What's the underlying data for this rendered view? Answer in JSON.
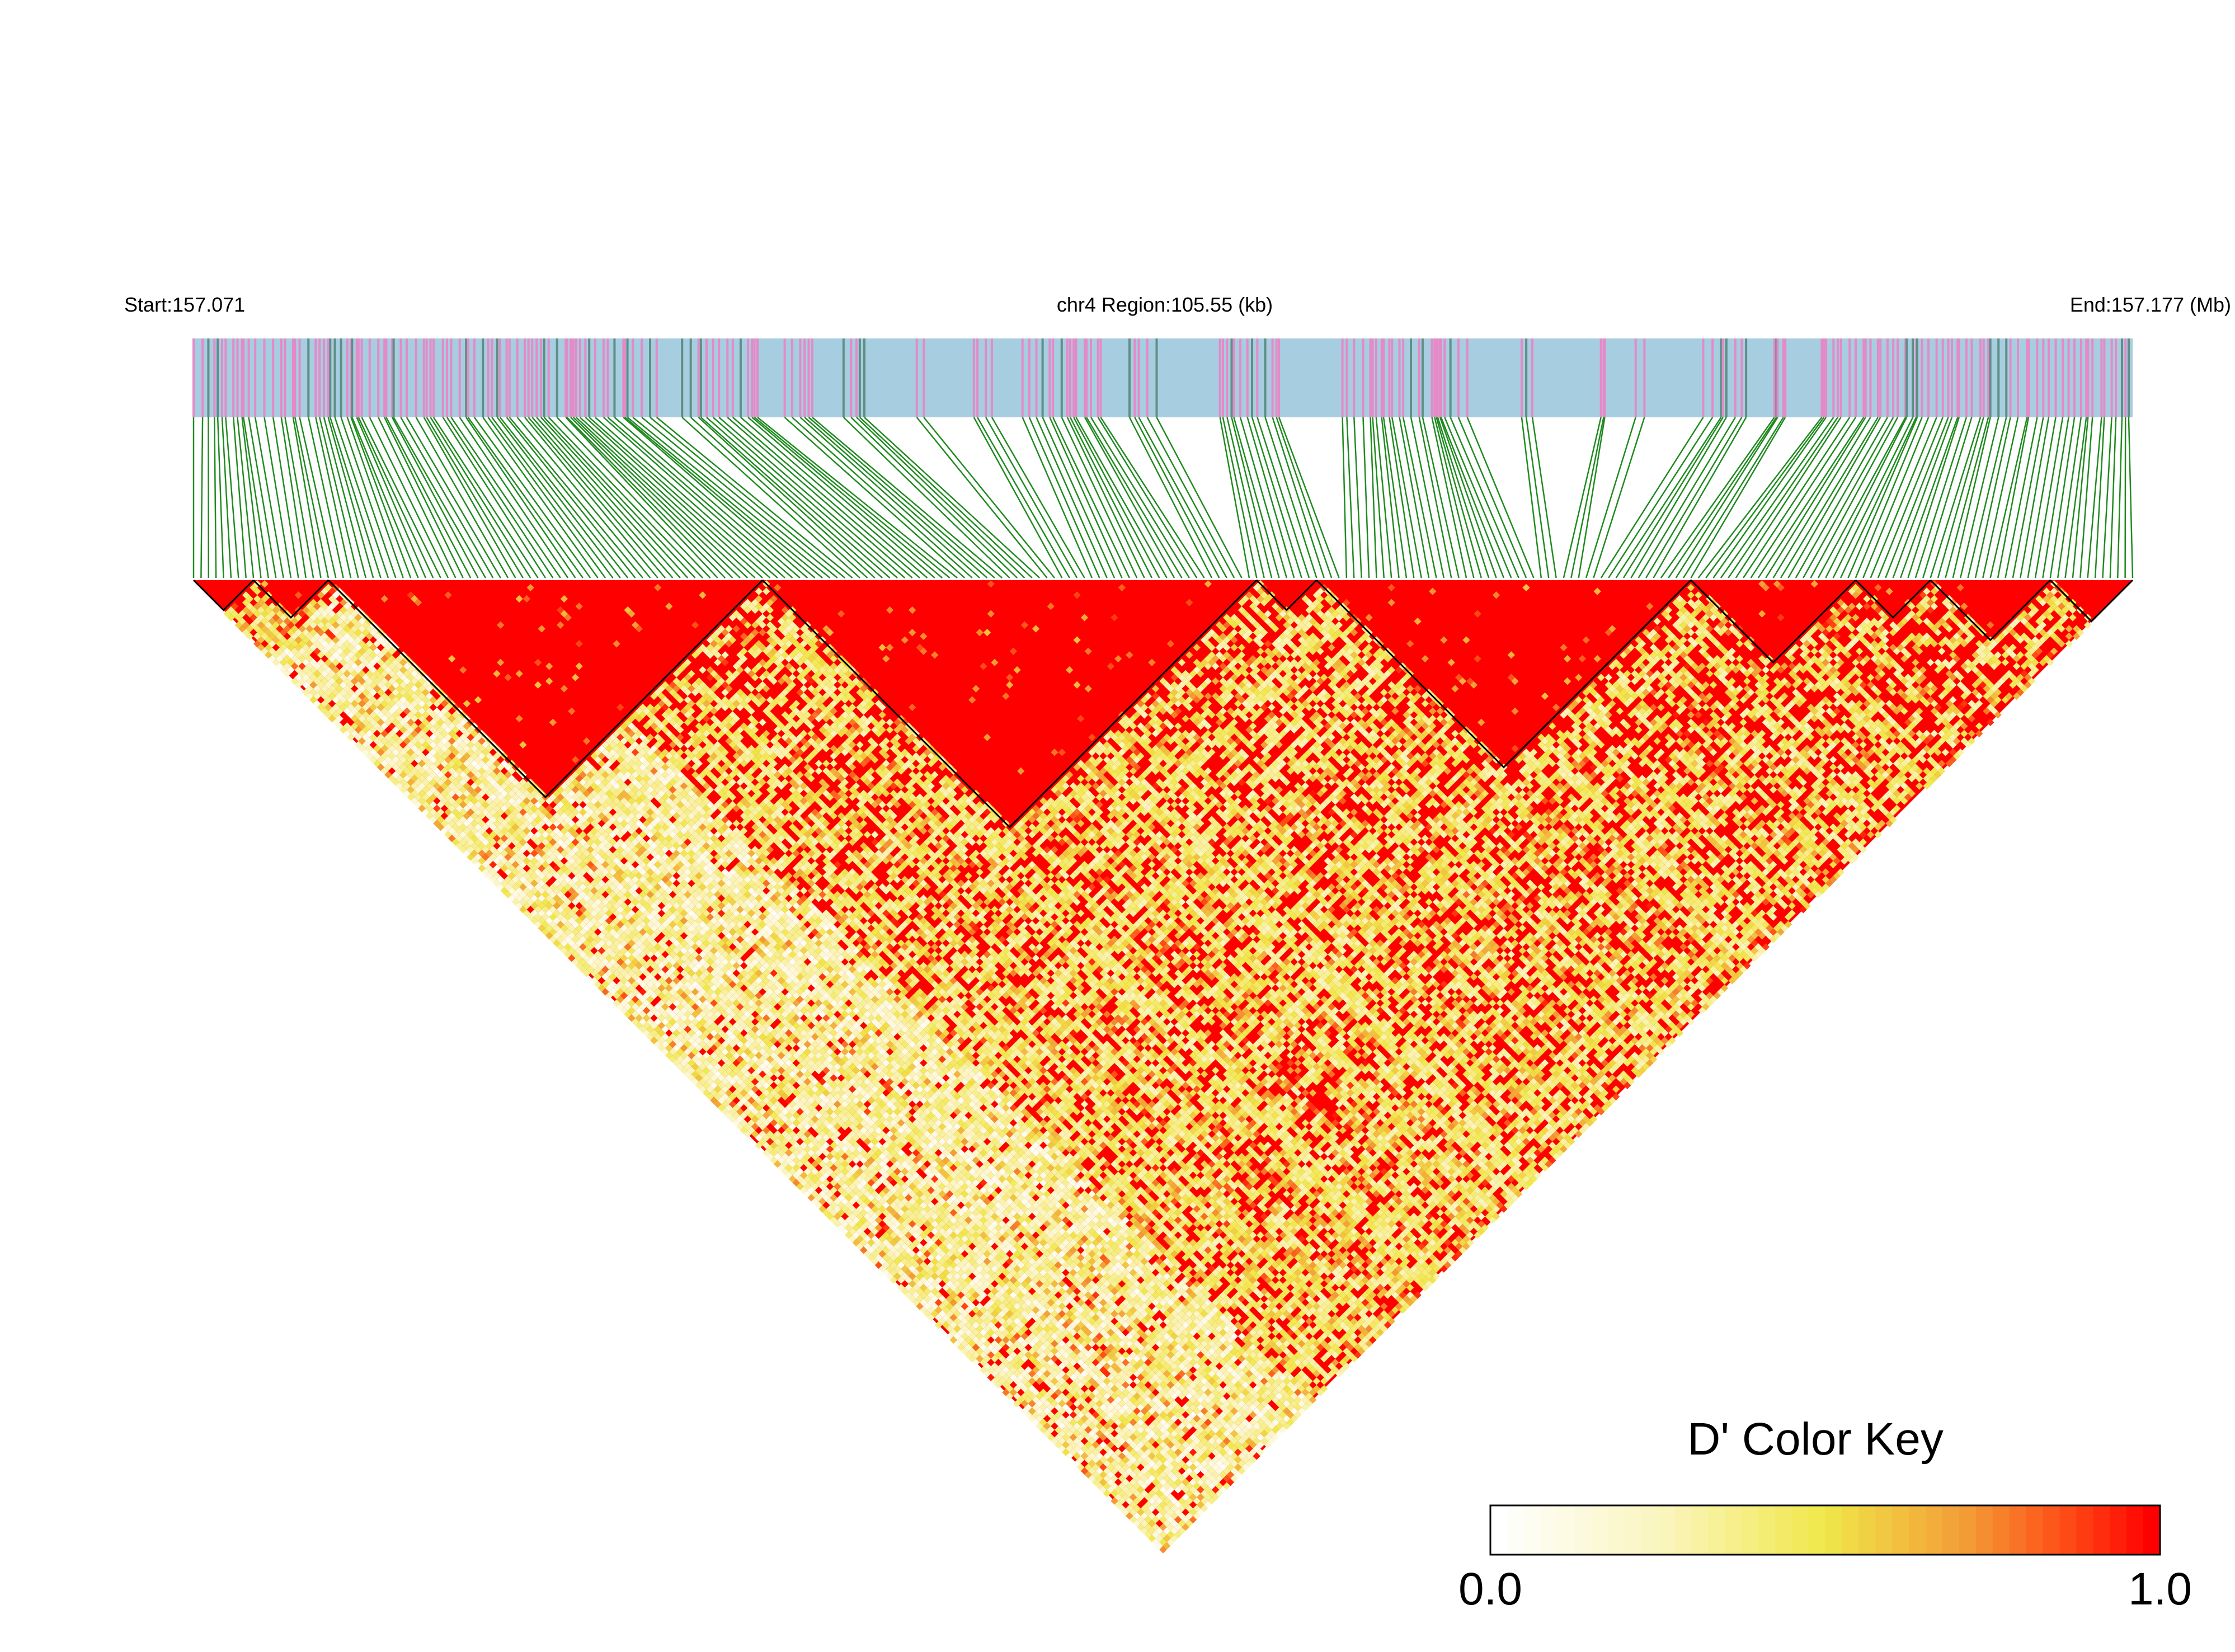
{
  "chart_data": {
    "type": "heatmap",
    "title": "",
    "region": {
      "start_label": "Start:157.071",
      "center_label": "chr4 Region:105.55 (kb)",
      "end_label": "End:157.177 (Mb)",
      "start_mb": 157.071,
      "end_mb": 157.177,
      "length_kb": 105.55,
      "chromosome": "chr4"
    },
    "snp_count": 260,
    "variant_track": {
      "colors": {
        "background": "#a7cde1",
        "snp_type_a": "#e48ac7",
        "snp_type_b": "#5f8f84"
      }
    },
    "connector_color": "#1f8a1f",
    "blocks": [
      {
        "from": 0,
        "to": 8
      },
      {
        "from": 8,
        "to": 18
      },
      {
        "from": 18,
        "to": 76
      },
      {
        "from": 76,
        "to": 142
      },
      {
        "from": 142,
        "to": 150
      },
      {
        "from": 150,
        "to": 200
      },
      {
        "from": 200,
        "to": 222
      },
      {
        "from": 222,
        "to": 232
      },
      {
        "from": 232,
        "to": 248
      },
      {
        "from": 248,
        "to": 259
      }
    ],
    "color_key": {
      "title": "D' Color Key",
      "min_label": "0.0",
      "max_label": "1.0",
      "min": 0.0,
      "max": 1.0,
      "colors": [
        "#ffffff",
        "#f0e84a",
        "#f0a030",
        "#ff0000"
      ]
    }
  }
}
